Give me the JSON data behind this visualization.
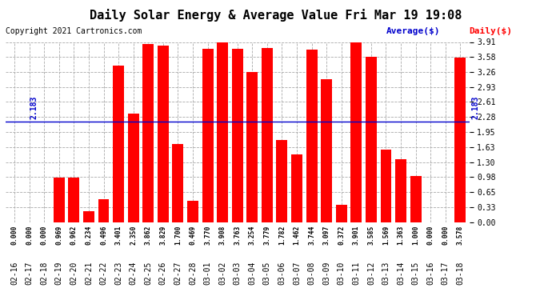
{
  "title": "Daily Solar Energy & Average Value Fri Mar 19 19:08",
  "copyright": "Copyright 2021 Cartronics.com",
  "average_label": "Average($)",
  "daily_label": "Daily($)",
  "average_value": 2.183,
  "categories": [
    "02-16",
    "02-17",
    "02-18",
    "02-19",
    "02-20",
    "02-21",
    "02-22",
    "02-23",
    "02-24",
    "02-25",
    "02-26",
    "02-27",
    "02-28",
    "03-01",
    "03-02",
    "03-03",
    "03-04",
    "03-05",
    "03-06",
    "03-07",
    "03-08",
    "03-09",
    "03-10",
    "03-11",
    "03-12",
    "03-13",
    "03-14",
    "03-15",
    "03-16",
    "03-17",
    "03-18"
  ],
  "values": [
    0.0,
    0.0,
    0.0,
    0.969,
    0.962,
    0.234,
    0.496,
    3.401,
    2.35,
    3.862,
    3.829,
    1.7,
    0.469,
    3.77,
    3.908,
    3.763,
    3.254,
    3.779,
    1.782,
    1.462,
    3.744,
    3.097,
    0.372,
    3.901,
    3.585,
    1.569,
    1.363,
    1.0,
    0.0,
    0.0,
    3.578
  ],
  "bar_color": "#ff0000",
  "avg_line_color": "#0000cc",
  "avg_text_color": "#0000cc",
  "daily_text_color": "#ff0000",
  "background_color": "#ffffff",
  "grid_color": "#aaaaaa",
  "ylim_max": 3.91,
  "yticks": [
    0.0,
    0.33,
    0.65,
    0.98,
    1.3,
    1.63,
    1.95,
    2.28,
    2.61,
    2.93,
    3.26,
    3.58,
    3.91
  ],
  "title_fontsize": 11,
  "copyright_fontsize": 7,
  "legend_fontsize": 8,
  "tick_fontsize": 7,
  "value_fontsize": 5.8,
  "avg_fontsize": 7
}
